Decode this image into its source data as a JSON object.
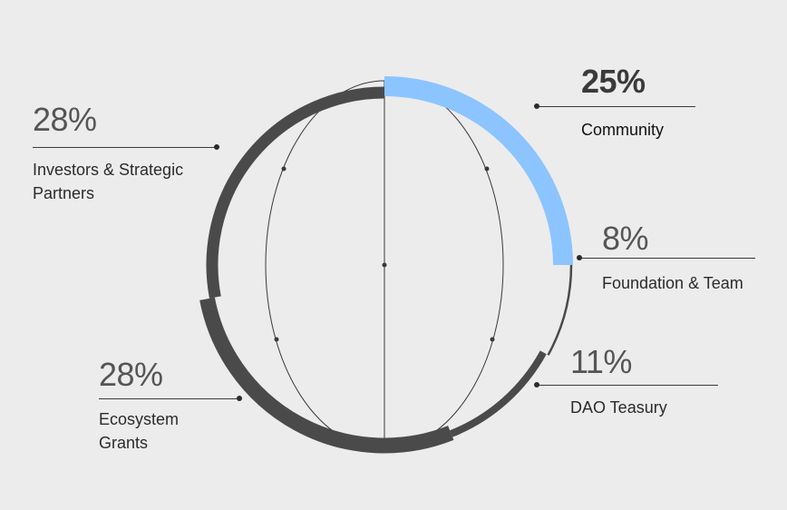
{
  "chart_data": {
    "type": "pie",
    "style": "segmented ring",
    "slices": [
      {
        "label": "Community",
        "value": 25,
        "value_label": "25%",
        "color": "#8cc4ff"
      },
      {
        "label": "Foundation & Team",
        "value": 8,
        "value_label": "8%",
        "color": "#4a4a4a"
      },
      {
        "label": "DAO Teasury",
        "value": 11,
        "value_label": "11%",
        "color": "#4a4a4a"
      },
      {
        "label": "Ecosystem\nGrants",
        "value": 28,
        "value_label": "28%",
        "color": "#4a4a4a"
      },
      {
        "label": "Investors & Strategic\nPartners",
        "value": 28,
        "value_label": "28%",
        "color": "#4a4a4a"
      }
    ]
  },
  "colors": {
    "background": "#ececec",
    "highlight_slice": "#8cc4ff",
    "default_slice": "#4a4a4a",
    "text": "#2b2b2b"
  }
}
